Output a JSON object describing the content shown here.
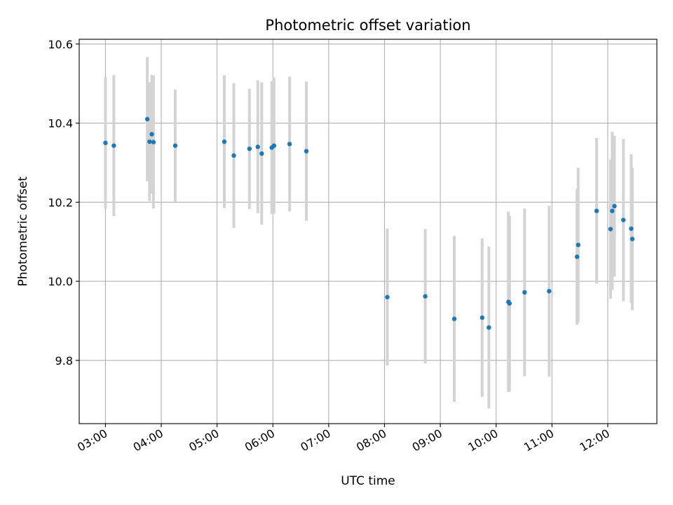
{
  "chart_data": {
    "type": "scatter",
    "title": "Photometric offset variation",
    "xlabel": "UTC time",
    "ylabel": "Photometric offset",
    "x_unit": "hours UTC",
    "xlim": [
      2.53,
      12.88
    ],
    "ylim": [
      9.64,
      10.612
    ],
    "grid": true,
    "x_ticks": [
      {
        "value": 3,
        "label": "03:00"
      },
      {
        "value": 4,
        "label": "04:00"
      },
      {
        "value": 5,
        "label": "05:00"
      },
      {
        "value": 6,
        "label": "06:00"
      },
      {
        "value": 7,
        "label": "07:00"
      },
      {
        "value": 8,
        "label": "08:00"
      },
      {
        "value": 9,
        "label": "09:00"
      },
      {
        "value": 10,
        "label": "10:00"
      },
      {
        "value": 11,
        "label": "11:00"
      },
      {
        "value": 12,
        "label": "12:00"
      }
    ],
    "y_ticks": [
      {
        "value": 9.8,
        "label": "9.8"
      },
      {
        "value": 10.0,
        "label": "10.0"
      },
      {
        "value": 10.2,
        "label": "10.2"
      },
      {
        "value": 10.4,
        "label": "10.4"
      },
      {
        "value": 10.6,
        "label": "10.6"
      }
    ],
    "colors": {
      "point": "#1f77b4",
      "errorbar": "#d3d3d3",
      "grid": "#b0b0b0"
    },
    "series": [
      {
        "points": [
          {
            "x": 3.0,
            "y": 10.35,
            "err": 0.167
          },
          {
            "x": 3.15,
            "y": 10.343,
            "err": 0.178
          },
          {
            "x": 3.75,
            "y": 10.41,
            "err": 0.157
          },
          {
            "x": 3.79,
            "y": 10.353,
            "err": 0.15
          },
          {
            "x": 3.83,
            "y": 10.372,
            "err": 0.15
          },
          {
            "x": 3.86,
            "y": 10.352,
            "err": 0.168
          },
          {
            "x": 4.25,
            "y": 10.343,
            "err": 0.142
          },
          {
            "x": 5.13,
            "y": 10.353,
            "err": 0.168
          },
          {
            "x": 5.3,
            "y": 10.318,
            "err": 0.183
          },
          {
            "x": 5.58,
            "y": 10.335,
            "err": 0.152
          },
          {
            "x": 5.73,
            "y": 10.34,
            "err": 0.168
          },
          {
            "x": 5.8,
            "y": 10.323,
            "err": 0.18
          },
          {
            "x": 5.98,
            "y": 10.338,
            "err": 0.168
          },
          {
            "x": 6.02,
            "y": 10.343,
            "err": 0.172
          },
          {
            "x": 6.3,
            "y": 10.347,
            "err": 0.17
          },
          {
            "x": 6.6,
            "y": 10.329,
            "err": 0.176
          },
          {
            "x": 8.05,
            "y": 9.96,
            "err": 0.173
          },
          {
            "x": 8.73,
            "y": 9.962,
            "err": 0.17
          },
          {
            "x": 9.25,
            "y": 9.905,
            "err": 0.21
          },
          {
            "x": 9.75,
            "y": 9.908,
            "err": 0.2
          },
          {
            "x": 9.87,
            "y": 9.883,
            "err": 0.205
          },
          {
            "x": 10.22,
            "y": 9.948,
            "err": 0.228
          },
          {
            "x": 10.24,
            "y": 9.944,
            "err": 0.222
          },
          {
            "x": 10.51,
            "y": 9.972,
            "err": 0.212
          },
          {
            "x": 10.95,
            "y": 9.975,
            "err": 0.216
          },
          {
            "x": 11.45,
            "y": 10.062,
            "err": 0.172
          },
          {
            "x": 11.47,
            "y": 10.092,
            "err": 0.195
          },
          {
            "x": 11.8,
            "y": 10.178,
            "err": 0.184
          },
          {
            "x": 12.05,
            "y": 10.132,
            "err": 0.176
          },
          {
            "x": 12.08,
            "y": 10.178,
            "err": 0.2
          },
          {
            "x": 12.12,
            "y": 10.19,
            "err": 0.178
          },
          {
            "x": 12.28,
            "y": 10.155,
            "err": 0.205
          },
          {
            "x": 12.42,
            "y": 10.133,
            "err": 0.188
          },
          {
            "x": 12.44,
            "y": 10.107,
            "err": 0.18
          }
        ]
      }
    ]
  }
}
